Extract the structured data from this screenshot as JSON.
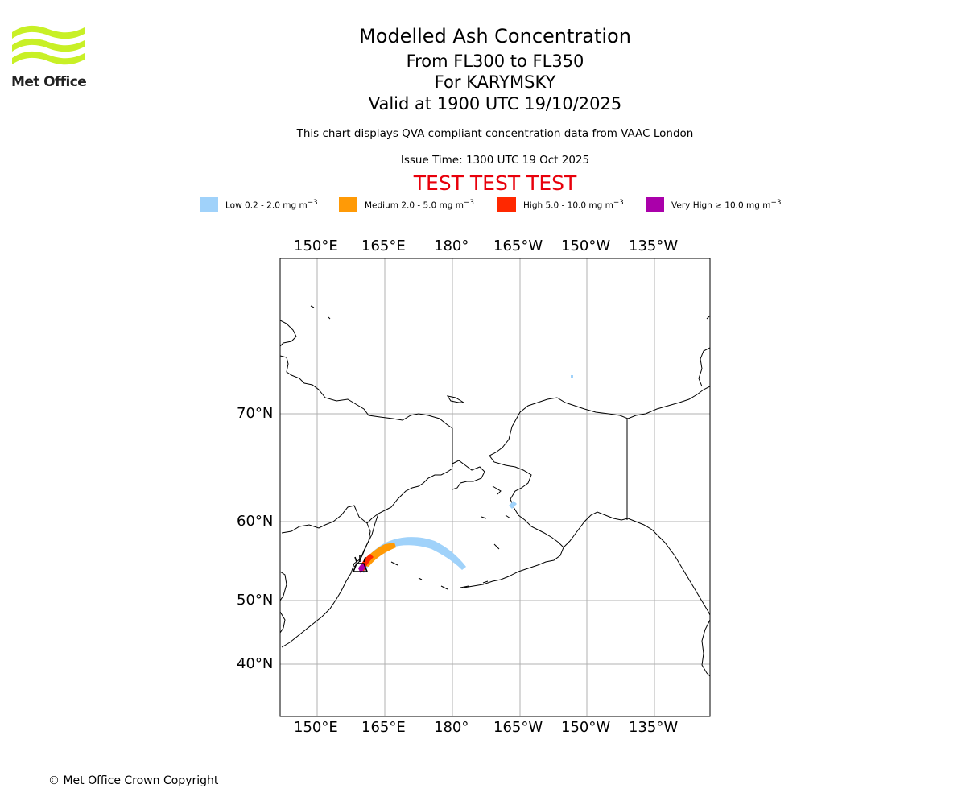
{
  "logo": {
    "text": "Met Office",
    "color": "#c8f026"
  },
  "titles": {
    "main": "Modelled Ash Concentration",
    "levels": "From FL300 to FL350",
    "volcano": "For KARYMSKY",
    "valid": "Valid at 1900 UTC 19/10/2025",
    "compliance": "This chart displays QVA compliant concentration data from VAAC London",
    "issue": "Issue Time: 1300 UTC 19 Oct 2025",
    "test": "TEST TEST TEST"
  },
  "legend": [
    {
      "label": "Low 0.2 - 2.0 mg m",
      "color": "#a0d2fa"
    },
    {
      "label": "Medium 2.0 - 5.0 mg m",
      "color": "#ff9a06"
    },
    {
      "label": "High 5.0 - 10.0 mg m",
      "color": "#ff2800"
    },
    {
      "label": "Very High ≥ 10.0 mg m",
      "color": "#aa00aa"
    }
  ],
  "legend_unit_exp": "−3",
  "axes": {
    "lon_labels": [
      "150°E",
      "165°E",
      "180°",
      "165°W",
      "150°W",
      "135°W"
    ],
    "lat_labels": [
      "70°N",
      "60°N",
      "50°N",
      "40°N"
    ]
  },
  "copyright": "© Met Office Crown Copyright"
}
